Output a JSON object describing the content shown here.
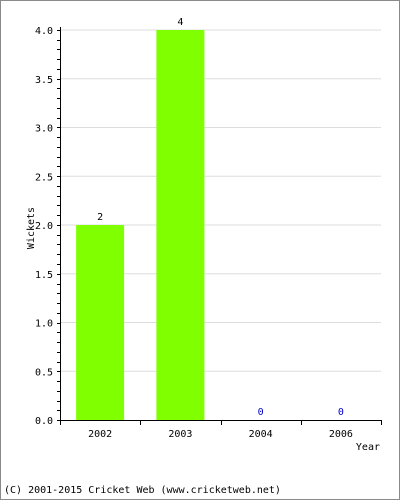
{
  "chart_data": {
    "type": "bar",
    "title": "",
    "xlabel": "Year",
    "ylabel": "Wickets",
    "categories": [
      "2002",
      "2003",
      "2004",
      "2006"
    ],
    "series": [
      {
        "values": [
          2,
          4,
          0,
          0
        ],
        "color": "#80ff00"
      }
    ],
    "data_labels": [
      "2",
      "4",
      "0",
      "0"
    ],
    "ylim": [
      0,
      4
    ],
    "yticks": [
      0,
      0.5,
      1,
      1.5,
      2,
      2.5,
      3,
      3.5,
      4
    ],
    "ytick_labels": [
      "0.0",
      "0.5",
      "1.0",
      "1.5",
      "2.0",
      "2.5",
      "3.0",
      "3.5",
      "4.0"
    ],
    "grid": true,
    "legend": "none",
    "zero_label_color": "#0000cc"
  },
  "footer": {
    "text": "(C) 2001-2015 Cricket Web (www.cricketweb.net)"
  }
}
